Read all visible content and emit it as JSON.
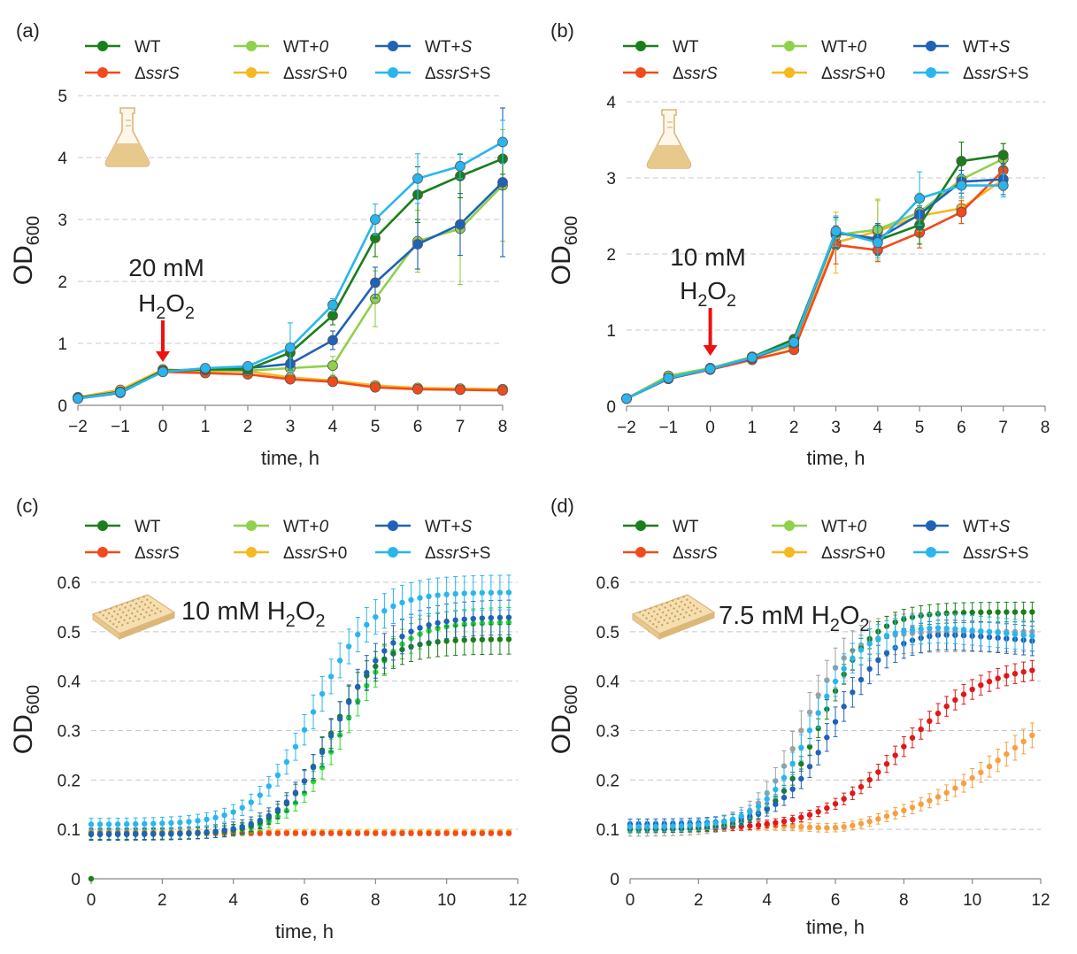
{
  "series_colors": {
    "WT": "#1a7f1a",
    "dssrS": "#f24a1c",
    "WT0": "#8fd14a",
    "dssrS0": "#f7b81e",
    "WTS": "#1f62b8",
    "dssrSS": "#29b6ee"
  },
  "icons": {
    "flask": "flask-icon",
    "plate": "microplate-icon"
  },
  "chart_data": [
    {
      "panel": "(a)",
      "type": "line",
      "title": "",
      "xlabel": "time, h",
      "ylabel": "OD",
      "ylabel_sub": "600",
      "xlim": [
        -2,
        8
      ],
      "ylim": [
        0,
        5
      ],
      "xticks": [
        -2,
        -1,
        0,
        1,
        2,
        3,
        4,
        5,
        6,
        7,
        8
      ],
      "yticks": [
        0,
        1,
        2,
        3,
        4,
        5
      ],
      "xtick_labels": [
        "−2",
        "−1",
        "0",
        "1",
        "2",
        "3",
        "4",
        "5",
        "6",
        "7",
        "8"
      ],
      "grid": true,
      "legend": [
        {
          "key": "WT",
          "pre": "",
          "it": "",
          "post": "WT"
        },
        {
          "key": "dssrS",
          "pre": "Δ",
          "it": "ssrS",
          "post": ""
        },
        {
          "key": "WT0",
          "pre": "WT+",
          "it": "0",
          "post": ""
        },
        {
          "key": "dssrS0",
          "pre": "Δ",
          "it": "ssrS",
          "post": "+0"
        },
        {
          "key": "WTS",
          "pre": "WT+",
          "it": "S",
          "post": ""
        },
        {
          "key": "dssrSS",
          "pre": "Δ",
          "it": "ssrS",
          "post": "+S"
        }
      ],
      "annotation": {
        "line1": "20 mM",
        "chem": "H2O2",
        "arrow_x": 0
      },
      "x": [
        -2,
        -1,
        0,
        1,
        2,
        3,
        4,
        5,
        6,
        7,
        8
      ],
      "series": [
        {
          "key": "dssrS0",
          "values": [
            0.13,
            0.25,
            0.58,
            0.55,
            0.55,
            0.45,
            0.4,
            0.32,
            0.28,
            0.27,
            0.26
          ],
          "err": [
            0.02,
            0.02,
            0.05,
            0.05,
            0.05,
            0.05,
            0.05,
            0.04,
            0.04,
            0.04,
            0.04
          ]
        },
        {
          "key": "dssrS",
          "values": [
            0.12,
            0.22,
            0.54,
            0.52,
            0.5,
            0.42,
            0.38,
            0.29,
            0.26,
            0.25,
            0.24
          ],
          "err": [
            0.02,
            0.02,
            0.04,
            0.04,
            0.04,
            0.04,
            0.04,
            0.03,
            0.03,
            0.03,
            0.03
          ]
        },
        {
          "key": "WT0",
          "values": [
            0.11,
            0.21,
            0.56,
            0.57,
            0.56,
            0.6,
            0.64,
            1.72,
            2.65,
            2.85,
            3.55
          ],
          "err": [
            0.02,
            0.02,
            0.03,
            0.05,
            0.06,
            0.1,
            0.15,
            0.45,
            0.5,
            0.9,
            0.9
          ]
        },
        {
          "key": "WTS",
          "values": [
            0.11,
            0.2,
            0.55,
            0.58,
            0.6,
            0.67,
            1.05,
            1.98,
            2.6,
            2.92,
            3.6
          ],
          "err": [
            0.02,
            0.02,
            0.03,
            0.05,
            0.06,
            0.1,
            0.15,
            0.25,
            0.4,
            0.5,
            1.2
          ]
        },
        {
          "key": "WT",
          "values": [
            0.12,
            0.22,
            0.56,
            0.58,
            0.58,
            0.85,
            1.45,
            2.7,
            3.4,
            3.7,
            3.98
          ],
          "err": [
            0.02,
            0.02,
            0.03,
            0.05,
            0.06,
            0.1,
            0.15,
            0.3,
            0.45,
            0.35,
            0.25
          ]
        },
        {
          "key": "dssrSS",
          "values": [
            0.11,
            0.21,
            0.54,
            0.6,
            0.63,
            0.93,
            1.62,
            3.0,
            3.66,
            3.86,
            4.25
          ],
          "err": [
            0.02,
            0.02,
            0.03,
            0.05,
            0.06,
            0.4,
            0.1,
            0.25,
            0.4,
            0.2,
            0.35
          ]
        }
      ]
    },
    {
      "panel": "(b)",
      "type": "line",
      "title": "",
      "xlabel": "time, h",
      "ylabel": "OD",
      "ylabel_sub": "600",
      "xlim": [
        -2,
        8
      ],
      "ylim": [
        0,
        4
      ],
      "xticks": [
        -2,
        -1,
        0,
        1,
        2,
        3,
        4,
        5,
        6,
        7,
        8
      ],
      "yticks": [
        0,
        1,
        2,
        3,
        4
      ],
      "xtick_labels": [
        "−2",
        "−1",
        "0",
        "1",
        "2",
        "3",
        "4",
        "5",
        "6",
        "7",
        "8"
      ],
      "grid": true,
      "legend": [
        {
          "key": "WT",
          "pre": "",
          "it": "",
          "post": "WT"
        },
        {
          "key": "dssrS",
          "pre": "Δ",
          "it": "ssrS",
          "post": ""
        },
        {
          "key": "WT0",
          "pre": "WT+",
          "it": "0",
          "post": ""
        },
        {
          "key": "dssrS0",
          "pre": "Δ",
          "it": "ssrS",
          "post": "+0"
        },
        {
          "key": "WTS",
          "pre": "WT+",
          "it": "S",
          "post": ""
        },
        {
          "key": "dssrSS",
          "pre": "Δ",
          "it": "ssrS",
          "post": "+S"
        }
      ],
      "annotation": {
        "line1": "10 mM",
        "chem": "H2O2",
        "arrow_x": 0
      },
      "x": [
        -2,
        -1,
        0,
        1,
        2,
        3,
        4,
        5,
        6,
        7
      ],
      "series": [
        {
          "key": "dssrS0",
          "values": [
            0.1,
            0.38,
            0.5,
            0.63,
            0.8,
            2.15,
            2.3,
            2.5,
            2.6,
            2.98
          ],
          "err": [
            0.02,
            0.03,
            0.03,
            0.04,
            0.05,
            0.4,
            0.4,
            0.25,
            0.2,
            0.15
          ]
        },
        {
          "key": "dssrS",
          "values": [
            0.1,
            0.36,
            0.48,
            0.61,
            0.74,
            2.12,
            2.05,
            2.28,
            2.55,
            3.1
          ],
          "err": [
            0.02,
            0.03,
            0.03,
            0.04,
            0.05,
            0.25,
            0.15,
            0.2,
            0.15,
            0.2
          ]
        },
        {
          "key": "WT0",
          "values": [
            0.1,
            0.4,
            0.5,
            0.65,
            0.88,
            2.25,
            2.32,
            2.55,
            2.98,
            3.25
          ],
          "err": [
            0.02,
            0.03,
            0.03,
            0.04,
            0.05,
            0.2,
            0.4,
            0.25,
            0.25,
            0.2
          ]
        },
        {
          "key": "WT",
          "values": [
            0.1,
            0.37,
            0.49,
            0.64,
            0.88,
            2.28,
            2.18,
            2.38,
            3.22,
            3.3
          ],
          "err": [
            0.02,
            0.03,
            0.03,
            0.04,
            0.05,
            0.2,
            0.2,
            0.25,
            0.25,
            0.15
          ]
        },
        {
          "key": "WTS",
          "values": [
            0.1,
            0.36,
            0.49,
            0.63,
            0.83,
            2.28,
            2.2,
            2.52,
            2.95,
            2.98
          ],
          "err": [
            0.02,
            0.03,
            0.03,
            0.04,
            0.05,
            0.2,
            0.2,
            0.2,
            0.15,
            0.2
          ]
        },
        {
          "key": "dssrSS",
          "values": [
            0.1,
            0.37,
            0.49,
            0.64,
            0.84,
            2.3,
            2.15,
            2.73,
            2.9,
            2.9
          ],
          "err": [
            0.02,
            0.03,
            0.03,
            0.04,
            0.05,
            0.2,
            0.2,
            0.35,
            0.15,
            0.15
          ]
        }
      ]
    },
    {
      "panel": "(c)",
      "type": "scatter",
      "title": "",
      "xlabel": "time, h",
      "ylabel": "OD",
      "ylabel_sub": "600",
      "xlim": [
        0,
        12
      ],
      "ylim": [
        0,
        0.6
      ],
      "xticks": [
        0,
        2,
        4,
        6,
        8,
        10,
        12
      ],
      "yticks": [
        0,
        0.1,
        0.2,
        0.3,
        0.4,
        0.5,
        0.6
      ],
      "ytick_labels": [
        "0",
        "0.1",
        "0.2",
        "0.3",
        "0.4",
        "0.5",
        "0.6"
      ],
      "grid": true,
      "legend": [
        {
          "key": "WT",
          "pre": "",
          "it": "",
          "post": "WT"
        },
        {
          "key": "dssrS",
          "pre": "Δ",
          "it": "ssrS",
          "post": ""
        },
        {
          "key": "WT0",
          "pre": "WT+",
          "it": "0",
          "post": ""
        },
        {
          "key": "dssrS0",
          "pre": "Δ",
          "it": "ssrS",
          "post": "+0"
        },
        {
          "key": "WTS",
          "pre": "WT+",
          "it": "S",
          "post": ""
        },
        {
          "key": "dssrSS",
          "pre": "Δ",
          "it": "ssrS",
          "post": "+S"
        }
      ],
      "annotation": {
        "label": "10 mM",
        "chem": "H2O2"
      },
      "x_start": 0,
      "x_step": 0.25,
      "x_count": 48,
      "series": [
        {
          "key": "dssrS0",
          "shape": "flat",
          "base": 0.095,
          "err": 0.004
        },
        {
          "key": "dssrS",
          "shape": "flat",
          "base": 0.092,
          "err": 0.004
        },
        {
          "key": "WT0",
          "shape": "logistic",
          "base": 0.09,
          "top": 0.52,
          "mid": 7.1,
          "k": 1.3,
          "err": 0.03,
          "color_override": "#22dd22"
        },
        {
          "key": "WT",
          "shape": "logistic",
          "base": 0.09,
          "top": 0.485,
          "mid": 6.7,
          "k": 1.4,
          "err": 0.03
        },
        {
          "key": "WTS",
          "shape": "logistic",
          "base": 0.09,
          "top": 0.53,
          "mid": 6.9,
          "k": 1.25,
          "err": 0.035
        },
        {
          "key": "dssrSS",
          "shape": "logistic",
          "base": 0.11,
          "top": 0.58,
          "mid": 6.3,
          "k": 1.25,
          "err": 0.035
        }
      ],
      "extra_point": {
        "key": "WT",
        "x": 0,
        "y": 0
      }
    },
    {
      "panel": "(d)",
      "type": "scatter",
      "title": "",
      "xlabel": "time, h",
      "ylabel": "OD",
      "ylabel_sub": "600",
      "xlim": [
        0,
        12
      ],
      "ylim": [
        0,
        0.6
      ],
      "xticks": [
        0,
        2,
        4,
        6,
        8,
        10,
        12
      ],
      "yticks": [
        0,
        0.1,
        0.2,
        0.3,
        0.4,
        0.5,
        0.6
      ],
      "ytick_labels": [
        "0",
        "0.1",
        "0.2",
        "0.3",
        "0.4",
        "0.5",
        "0.6"
      ],
      "grid": true,
      "legend": [
        {
          "key": "WT",
          "pre": "",
          "it": "",
          "post": "WT"
        },
        {
          "key": "dssrS",
          "pre": "Δ",
          "it": "ssrS",
          "post": ""
        },
        {
          "key": "WT0",
          "pre": "WT+",
          "it": "0",
          "post": ""
        },
        {
          "key": "dssrS0",
          "pre": "Δ",
          "it": "ssrS",
          "post": "+0"
        },
        {
          "key": "WTS",
          "pre": "WT+",
          "it": "S",
          "post": ""
        },
        {
          "key": "dssrSS",
          "pre": "Δ",
          "it": "ssrS",
          "post": "+S"
        }
      ],
      "annotation": {
        "label": "7.5 mM",
        "chem": "H2O2"
      },
      "x_start": 0,
      "x_step": 0.25,
      "x_count": 48,
      "series": [
        {
          "key": "dssrS0",
          "shape": "logistic",
          "base": 0.105,
          "top": 0.42,
          "mid": 11.2,
          "k": 0.65,
          "dip": 0.012,
          "err": 0.025,
          "color_override": "#f5a042"
        },
        {
          "key": "dssrS",
          "shape": "logistic",
          "base": 0.1,
          "top": 0.435,
          "mid": 8.0,
          "k": 0.85,
          "err": 0.02,
          "color_override": "#e01818"
        },
        {
          "key": "WT0",
          "shape": "logistic",
          "base": 0.1,
          "top": 0.5,
          "mid": 5.0,
          "k": 1.5,
          "err": 0.04,
          "color_override": "#a0a0a0"
        },
        {
          "key": "WT",
          "shape": "logistic",
          "base": 0.1,
          "top": 0.54,
          "mid": 5.6,
          "k": 1.4,
          "err": 0.02
        },
        {
          "key": "WTS",
          "shape": "logistic",
          "base": 0.11,
          "top": 0.5,
          "mid": 5.9,
          "k": 1.3,
          "err": 0.03,
          "decline": 0.02
        },
        {
          "key": "dssrSS",
          "shape": "logistic",
          "base": 0.105,
          "top": 0.51,
          "mid": 5.3,
          "k": 1.4,
          "err": 0.03,
          "decline": 0.02
        }
      ]
    }
  ]
}
